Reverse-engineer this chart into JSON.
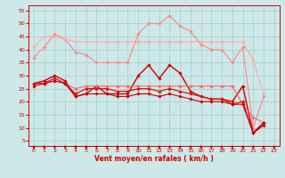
{
  "background_color": "#cce8e8",
  "grid_color": "#aacccc",
  "xlabel": "Vent moyen/en rafales ( km/h )",
  "xlim": [
    -0.5,
    23.5
  ],
  "ylim": [
    3,
    57
  ],
  "yticks": [
    5,
    10,
    15,
    20,
    25,
    30,
    35,
    40,
    45,
    50,
    55
  ],
  "xticks": [
    0,
    1,
    2,
    3,
    4,
    5,
    6,
    7,
    8,
    9,
    10,
    11,
    12,
    13,
    14,
    15,
    16,
    17,
    18,
    19,
    20,
    21,
    22,
    23
  ],
  "lines": [
    {
      "x": [
        0,
        1,
        2,
        3,
        4,
        5,
        6,
        7,
        8,
        9,
        10,
        11,
        12,
        13,
        14,
        15,
        16,
        17,
        18,
        19,
        20,
        21,
        22
      ],
      "y": [
        37,
        41,
        46,
        44,
        39,
        38,
        35,
        35,
        35,
        35,
        46,
        50,
        50,
        53,
        49,
        47,
        42,
        40,
        40,
        35,
        41,
        10,
        22
      ],
      "color": "#ff8888",
      "lw": 0.8
    },
    {
      "x": [
        0,
        1,
        2,
        3,
        4,
        5,
        6,
        7,
        8,
        9,
        10,
        11,
        12,
        13,
        14,
        15,
        16,
        17,
        18,
        19,
        20,
        21,
        22
      ],
      "y": [
        41,
        45,
        45,
        44,
        43,
        43,
        43,
        43,
        43,
        43,
        43,
        43,
        43,
        43,
        43,
        43,
        43,
        43,
        43,
        43,
        43,
        36,
        23
      ],
      "color": "#ffaaaa",
      "lw": 0.8
    },
    {
      "x": [
        0,
        1,
        2,
        3,
        4,
        5,
        6,
        7,
        8,
        9,
        10,
        11,
        12,
        13,
        14,
        15,
        16,
        17,
        18,
        19,
        20,
        21,
        22
      ],
      "y": [
        27,
        28,
        30,
        28,
        22,
        23,
        26,
        23,
        23,
        23,
        30,
        34,
        29,
        34,
        31,
        24,
        22,
        21,
        21,
        20,
        26,
        8,
        11
      ],
      "color": "#cc0000",
      "lw": 1.0
    },
    {
      "x": [
        0,
        1,
        2,
        3,
        4,
        5,
        6,
        7,
        8,
        9,
        10,
        11,
        12,
        13,
        14,
        15,
        16,
        17,
        18,
        19,
        20,
        21,
        22
      ],
      "y": [
        27,
        27,
        28,
        27,
        25,
        26,
        26,
        26,
        26,
        26,
        26,
        26,
        26,
        26,
        26,
        26,
        26,
        26,
        26,
        26,
        19,
        14,
        12
      ],
      "color": "#ff6666",
      "lw": 0.8
    },
    {
      "x": [
        0,
        1,
        2,
        3,
        4,
        5,
        6,
        7,
        8,
        9,
        10,
        11,
        12,
        13,
        14,
        15,
        16,
        17,
        18,
        19,
        20,
        21,
        22
      ],
      "y": [
        27,
        27,
        29,
        27,
        23,
        25,
        25,
        25,
        24,
        24,
        25,
        25,
        24,
        25,
        24,
        23,
        22,
        21,
        21,
        19,
        20,
        8,
        12
      ],
      "color": "#dd1111",
      "lw": 0.9
    },
    {
      "x": [
        0,
        1,
        2,
        3,
        4,
        5,
        6,
        7,
        8,
        9,
        10,
        11,
        12,
        13,
        14,
        15,
        16,
        17,
        18,
        19,
        20,
        21,
        22
      ],
      "y": [
        26,
        27,
        28,
        27,
        22,
        23,
        23,
        23,
        22,
        22,
        23,
        23,
        22,
        23,
        22,
        21,
        20,
        20,
        20,
        19,
        19,
        8,
        12
      ],
      "color": "#cc0000",
      "lw": 0.8
    }
  ],
  "marker": "D",
  "markersize": 1.8,
  "arrow_color": "#cc0000",
  "label_color": "#cc0000",
  "tick_fontsize": 4.5,
  "xlabel_fontsize": 5.5
}
